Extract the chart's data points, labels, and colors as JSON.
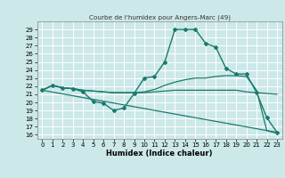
{
  "title": "Courbe de l'humidex pour Angers-Marc (49)",
  "xlabel": "Humidex (Indice chaleur)",
  "bg_color": "#cce8e8",
  "grid_color": "#ffffff",
  "line_color": "#1a7a6e",
  "xlim": [
    -0.5,
    23.5
  ],
  "ylim": [
    15.5,
    30.0
  ],
  "xticks": [
    0,
    1,
    2,
    3,
    4,
    5,
    6,
    7,
    8,
    9,
    10,
    11,
    12,
    13,
    14,
    15,
    16,
    17,
    18,
    19,
    20,
    21,
    22,
    23
  ],
  "yticks": [
    16,
    17,
    18,
    19,
    20,
    21,
    22,
    23,
    24,
    25,
    26,
    27,
    28,
    29
  ],
  "lines": [
    {
      "x": [
        0,
        1,
        2,
        3,
        4,
        5,
        6,
        7,
        8,
        9,
        10,
        11,
        12,
        13,
        14,
        15,
        16,
        17,
        18,
        19,
        20,
        21,
        22,
        23
      ],
      "y": [
        21.5,
        22.1,
        21.8,
        21.7,
        21.3,
        20.1,
        19.9,
        19.0,
        19.3,
        21.1,
        23.0,
        23.2,
        25.0,
        29.0,
        29.0,
        29.0,
        27.3,
        26.8,
        24.2,
        23.5,
        23.5,
        21.2,
        18.1,
        16.3
      ],
      "marker": "D",
      "markersize": 2.0,
      "linewidth": 1.0
    },
    {
      "x": [
        0,
        1,
        2,
        3,
        4,
        5,
        6,
        7,
        8,
        9,
        10,
        11,
        12,
        13,
        14,
        15,
        16,
        17,
        18,
        19,
        20,
        21,
        22,
        23
      ],
      "y": [
        21.5,
        22.1,
        21.8,
        21.7,
        21.5,
        21.4,
        21.3,
        21.2,
        21.2,
        21.2,
        21.2,
        21.3,
        21.4,
        21.5,
        21.5,
        21.5,
        21.5,
        21.5,
        21.5,
        21.5,
        21.3,
        21.2,
        21.1,
        21.0
      ],
      "marker": null,
      "markersize": 0,
      "linewidth": 0.9
    },
    {
      "x": [
        0,
        1,
        2,
        3,
        4,
        5,
        6,
        7,
        8,
        9,
        10,
        11,
        12,
        13,
        14,
        15,
        16,
        17,
        18,
        19,
        20,
        21,
        22,
        23
      ],
      "y": [
        21.5,
        22.1,
        21.8,
        21.7,
        21.5,
        21.4,
        21.3,
        21.2,
        21.2,
        21.2,
        21.3,
        21.6,
        22.1,
        22.5,
        22.8,
        23.0,
        23.0,
        23.2,
        23.3,
        23.3,
        23.2,
        21.5,
        16.5,
        16.2
      ],
      "marker": null,
      "markersize": 0,
      "linewidth": 0.9
    },
    {
      "x": [
        0,
        23
      ],
      "y": [
        21.5,
        16.3
      ],
      "marker": null,
      "markersize": 0,
      "linewidth": 0.9
    }
  ],
  "tick_fontsize": 5.0,
  "xlabel_fontsize": 6.0,
  "title_fontsize": 5.2
}
